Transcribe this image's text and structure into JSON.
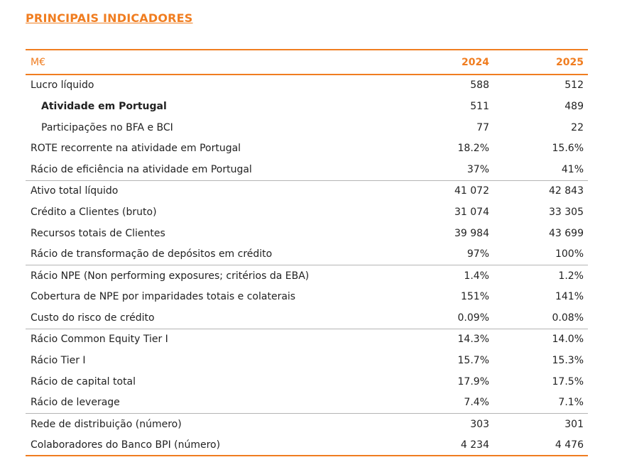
{
  "title": "PRINCIPAIS INDICADORES",
  "table": {
    "header": [
      "M€",
      "2024",
      "2025"
    ],
    "rows": [
      [
        "Lucro líquido",
        "588",
        "512"
      ],
      [
        "Atividade em Portugal",
        "511",
        "489"
      ],
      [
        "Participações no BFA e BCI",
        "77",
        "22"
      ],
      [
        "ROTE recorrente na atividade em Portugal",
        "18.2%",
        "15.6%"
      ],
      [
        "Rácio de eficiência na atividade em Portugal",
        "37%",
        "41%"
      ],
      [
        "Ativo total líquido",
        "41 072",
        "42 843"
      ],
      [
        "Crédito a Clientes (bruto)",
        "31 074",
        "33 305"
      ],
      [
        "Recursos totais de Clientes",
        "39 984",
        "43 699"
      ],
      [
        "Rácio de transformação de depósitos em crédito",
        "97%",
        "100%"
      ],
      [
        "Rácio NPE (Non performing exposures; critérios da EBA)",
        "1.4%",
        "1.2%"
      ],
      [
        "Cobertura de NPE por imparidades totais e colaterais",
        "151%",
        "141%"
      ],
      [
        "Custo do risco de crédito",
        "0.09%",
        "0.08%"
      ],
      [
        "Rácio Common Equity Tier I",
        "14.3%",
        "14.0%"
      ],
      [
        "Rácio Tier I",
        "15.7%",
        "15.3%"
      ],
      [
        "Rácio de capital total",
        "17.9%",
        "17.5%"
      ],
      [
        "Rácio de leverage",
        "7.4%",
        "7.1%"
      ],
      [
        "Rede de distribuição (número)",
        "303",
        "301"
      ],
      [
        "Colaboradores do Banco BPI (número)",
        "4 234",
        "4 476"
      ]
    ]
  }
}
